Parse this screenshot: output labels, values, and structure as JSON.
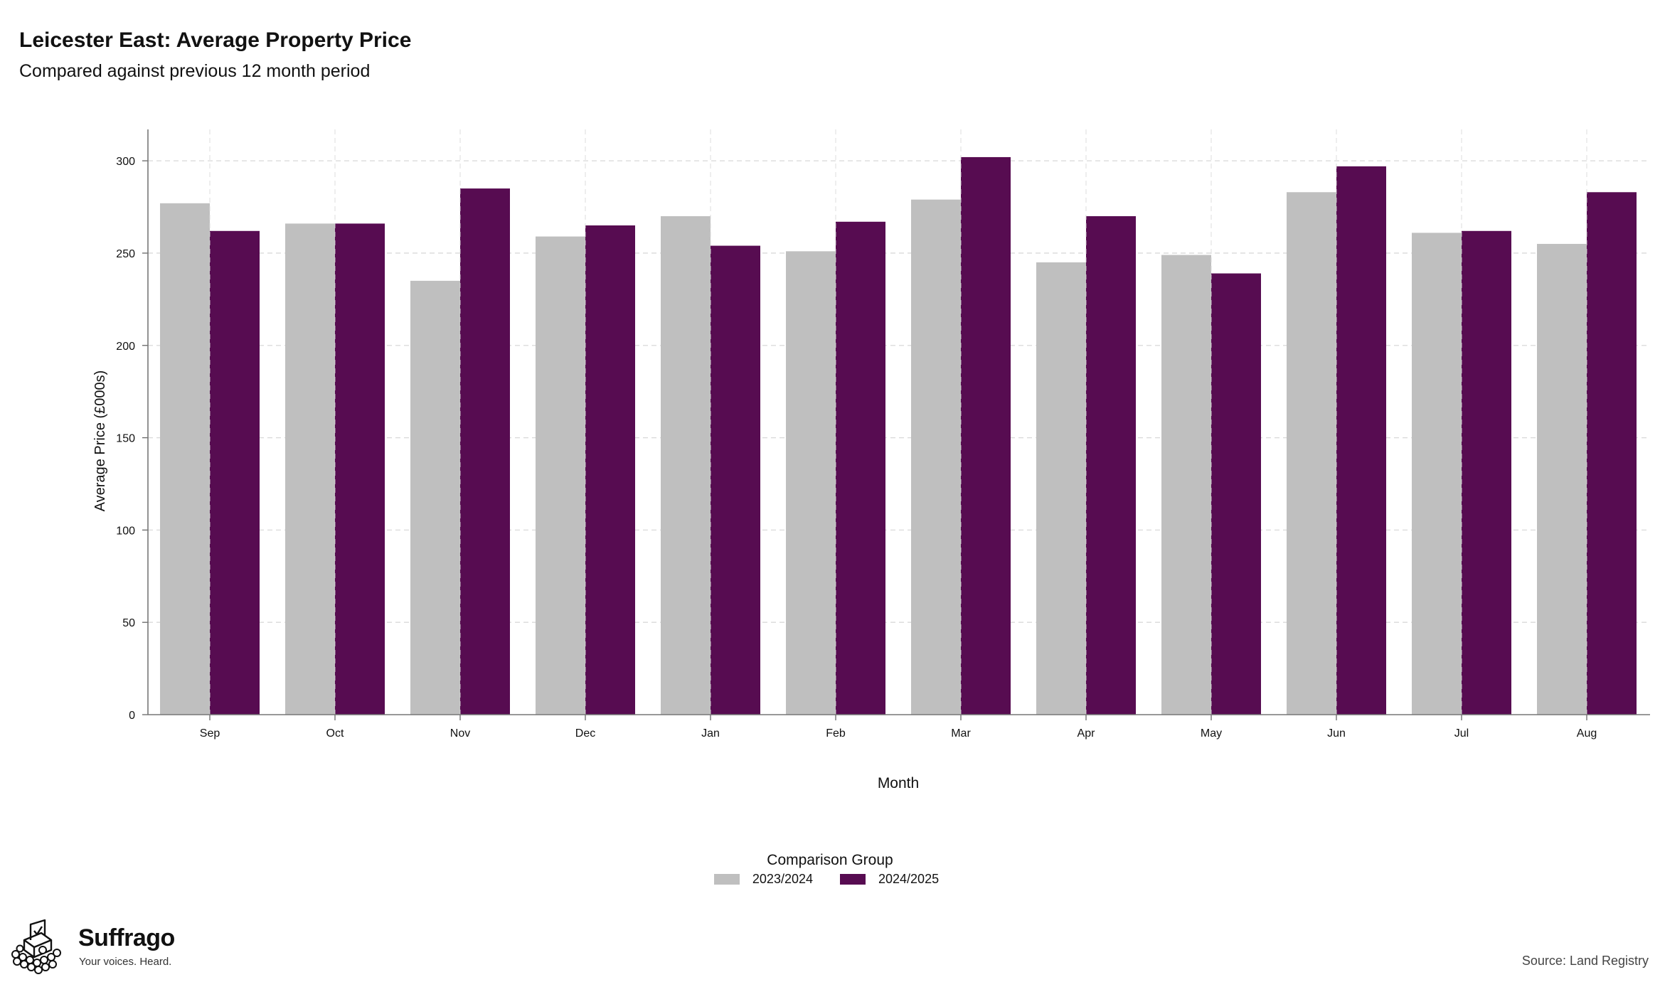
{
  "header": {
    "title": "Leicester East: Average Property Price",
    "subtitle": "Compared against previous 12 month period"
  },
  "chart_data": {
    "type": "bar",
    "title": "Leicester East: Average Property Price",
    "subtitle": "Compared against previous 12 month period",
    "xlabel": "Month",
    "ylabel": "Average Price (£000s)",
    "categories": [
      "Sep",
      "Oct",
      "Nov",
      "Dec",
      "Jan",
      "Feb",
      "Mar",
      "Apr",
      "May",
      "Jun",
      "Jul",
      "Aug"
    ],
    "ylim": [
      0,
      317
    ],
    "yticks": [
      0,
      50,
      100,
      150,
      200,
      250,
      300
    ],
    "grid": true,
    "legend_position": "bottom",
    "legend_title": "Comparison Group",
    "series": [
      {
        "name": "2023/2024",
        "color": "#bfbfbf",
        "values": [
          277,
          266,
          235,
          259,
          270,
          251,
          279,
          245,
          249,
          283,
          261,
          255
        ]
      },
      {
        "name": "2024/2025",
        "color": "#570c51",
        "values": [
          262,
          266,
          285,
          265,
          254,
          267,
          302,
          270,
          239,
          297,
          262,
          283
        ]
      }
    ]
  },
  "legend": {
    "title": "Comparison Group",
    "items": [
      {
        "label": "2023/2024",
        "color": "#bfbfbf"
      },
      {
        "label": "2024/2025",
        "color": "#570c51"
      }
    ]
  },
  "branding": {
    "name": "Suffrago",
    "tagline": "Your voices. Heard.",
    "logo_icon": "ballot-box-icon"
  },
  "footer": {
    "source": "Source: Land Registry"
  }
}
